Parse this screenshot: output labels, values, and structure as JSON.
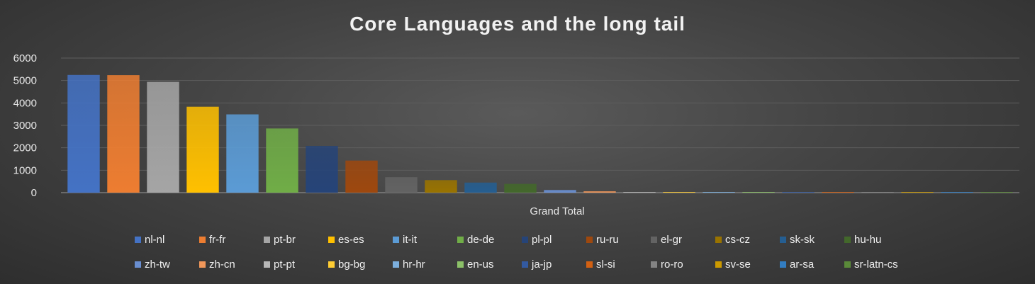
{
  "chart_data": {
    "type": "bar",
    "title": "Core Languages and the long tail",
    "categories": [
      "Grand Total"
    ],
    "ylim": [
      0,
      6000
    ],
    "yticks": [
      0,
      1000,
      2000,
      3000,
      4000,
      5000,
      6000
    ],
    "grid": true,
    "legend_position": "bottom",
    "series": [
      {
        "name": "nl-nl",
        "values": [
          5250
        ],
        "color": "#4472c4"
      },
      {
        "name": "fr-fr",
        "values": [
          5240
        ],
        "color": "#ed7d31"
      },
      {
        "name": "pt-br",
        "values": [
          4940
        ],
        "color": "#a5a5a5"
      },
      {
        "name": "es-es",
        "values": [
          3830
        ],
        "color": "#ffc000"
      },
      {
        "name": "it-it",
        "values": [
          3490
        ],
        "color": "#5b9bd5"
      },
      {
        "name": "de-de",
        "values": [
          2860
        ],
        "color": "#70ad47"
      },
      {
        "name": "pl-pl",
        "values": [
          2080
        ],
        "color": "#264478"
      },
      {
        "name": "ru-ru",
        "values": [
          1430
        ],
        "color": "#9e480e"
      },
      {
        "name": "el-gr",
        "values": [
          690
        ],
        "color": "#636363"
      },
      {
        "name": "cs-cz",
        "values": [
          560
        ],
        "color": "#997300"
      },
      {
        "name": "sk-sk",
        "values": [
          450
        ],
        "color": "#255e91"
      },
      {
        "name": "hu-hu",
        "values": [
          390
        ],
        "color": "#43682b"
      },
      {
        "name": "zh-tw",
        "values": [
          120
        ],
        "color": "#698ed0"
      },
      {
        "name": "zh-cn",
        "values": [
          60
        ],
        "color": "#f1975a"
      },
      {
        "name": "pt-pt",
        "values": [
          15
        ],
        "color": "#b7b7b7"
      },
      {
        "name": "bg-bg",
        "values": [
          12
        ],
        "color": "#ffcd33"
      },
      {
        "name": "hr-hr",
        "values": [
          10
        ],
        "color": "#7cafdd"
      },
      {
        "name": "en-us",
        "values": [
          10
        ],
        "color": "#8cc168"
      },
      {
        "name": "ja-jp",
        "values": [
          8
        ],
        "color": "#335aa1"
      },
      {
        "name": "sl-si",
        "values": [
          8
        ],
        "color": "#d26012"
      },
      {
        "name": "ro-ro",
        "values": [
          6
        ],
        "color": "#848484"
      },
      {
        "name": "sv-se",
        "values": [
          6
        ],
        "color": "#cc9a00"
      },
      {
        "name": "ar-sa",
        "values": [
          5
        ],
        "color": "#327dc2"
      },
      {
        "name": "sr-latn-cs",
        "values": [
          4
        ],
        "color": "#5a8a39"
      }
    ]
  }
}
